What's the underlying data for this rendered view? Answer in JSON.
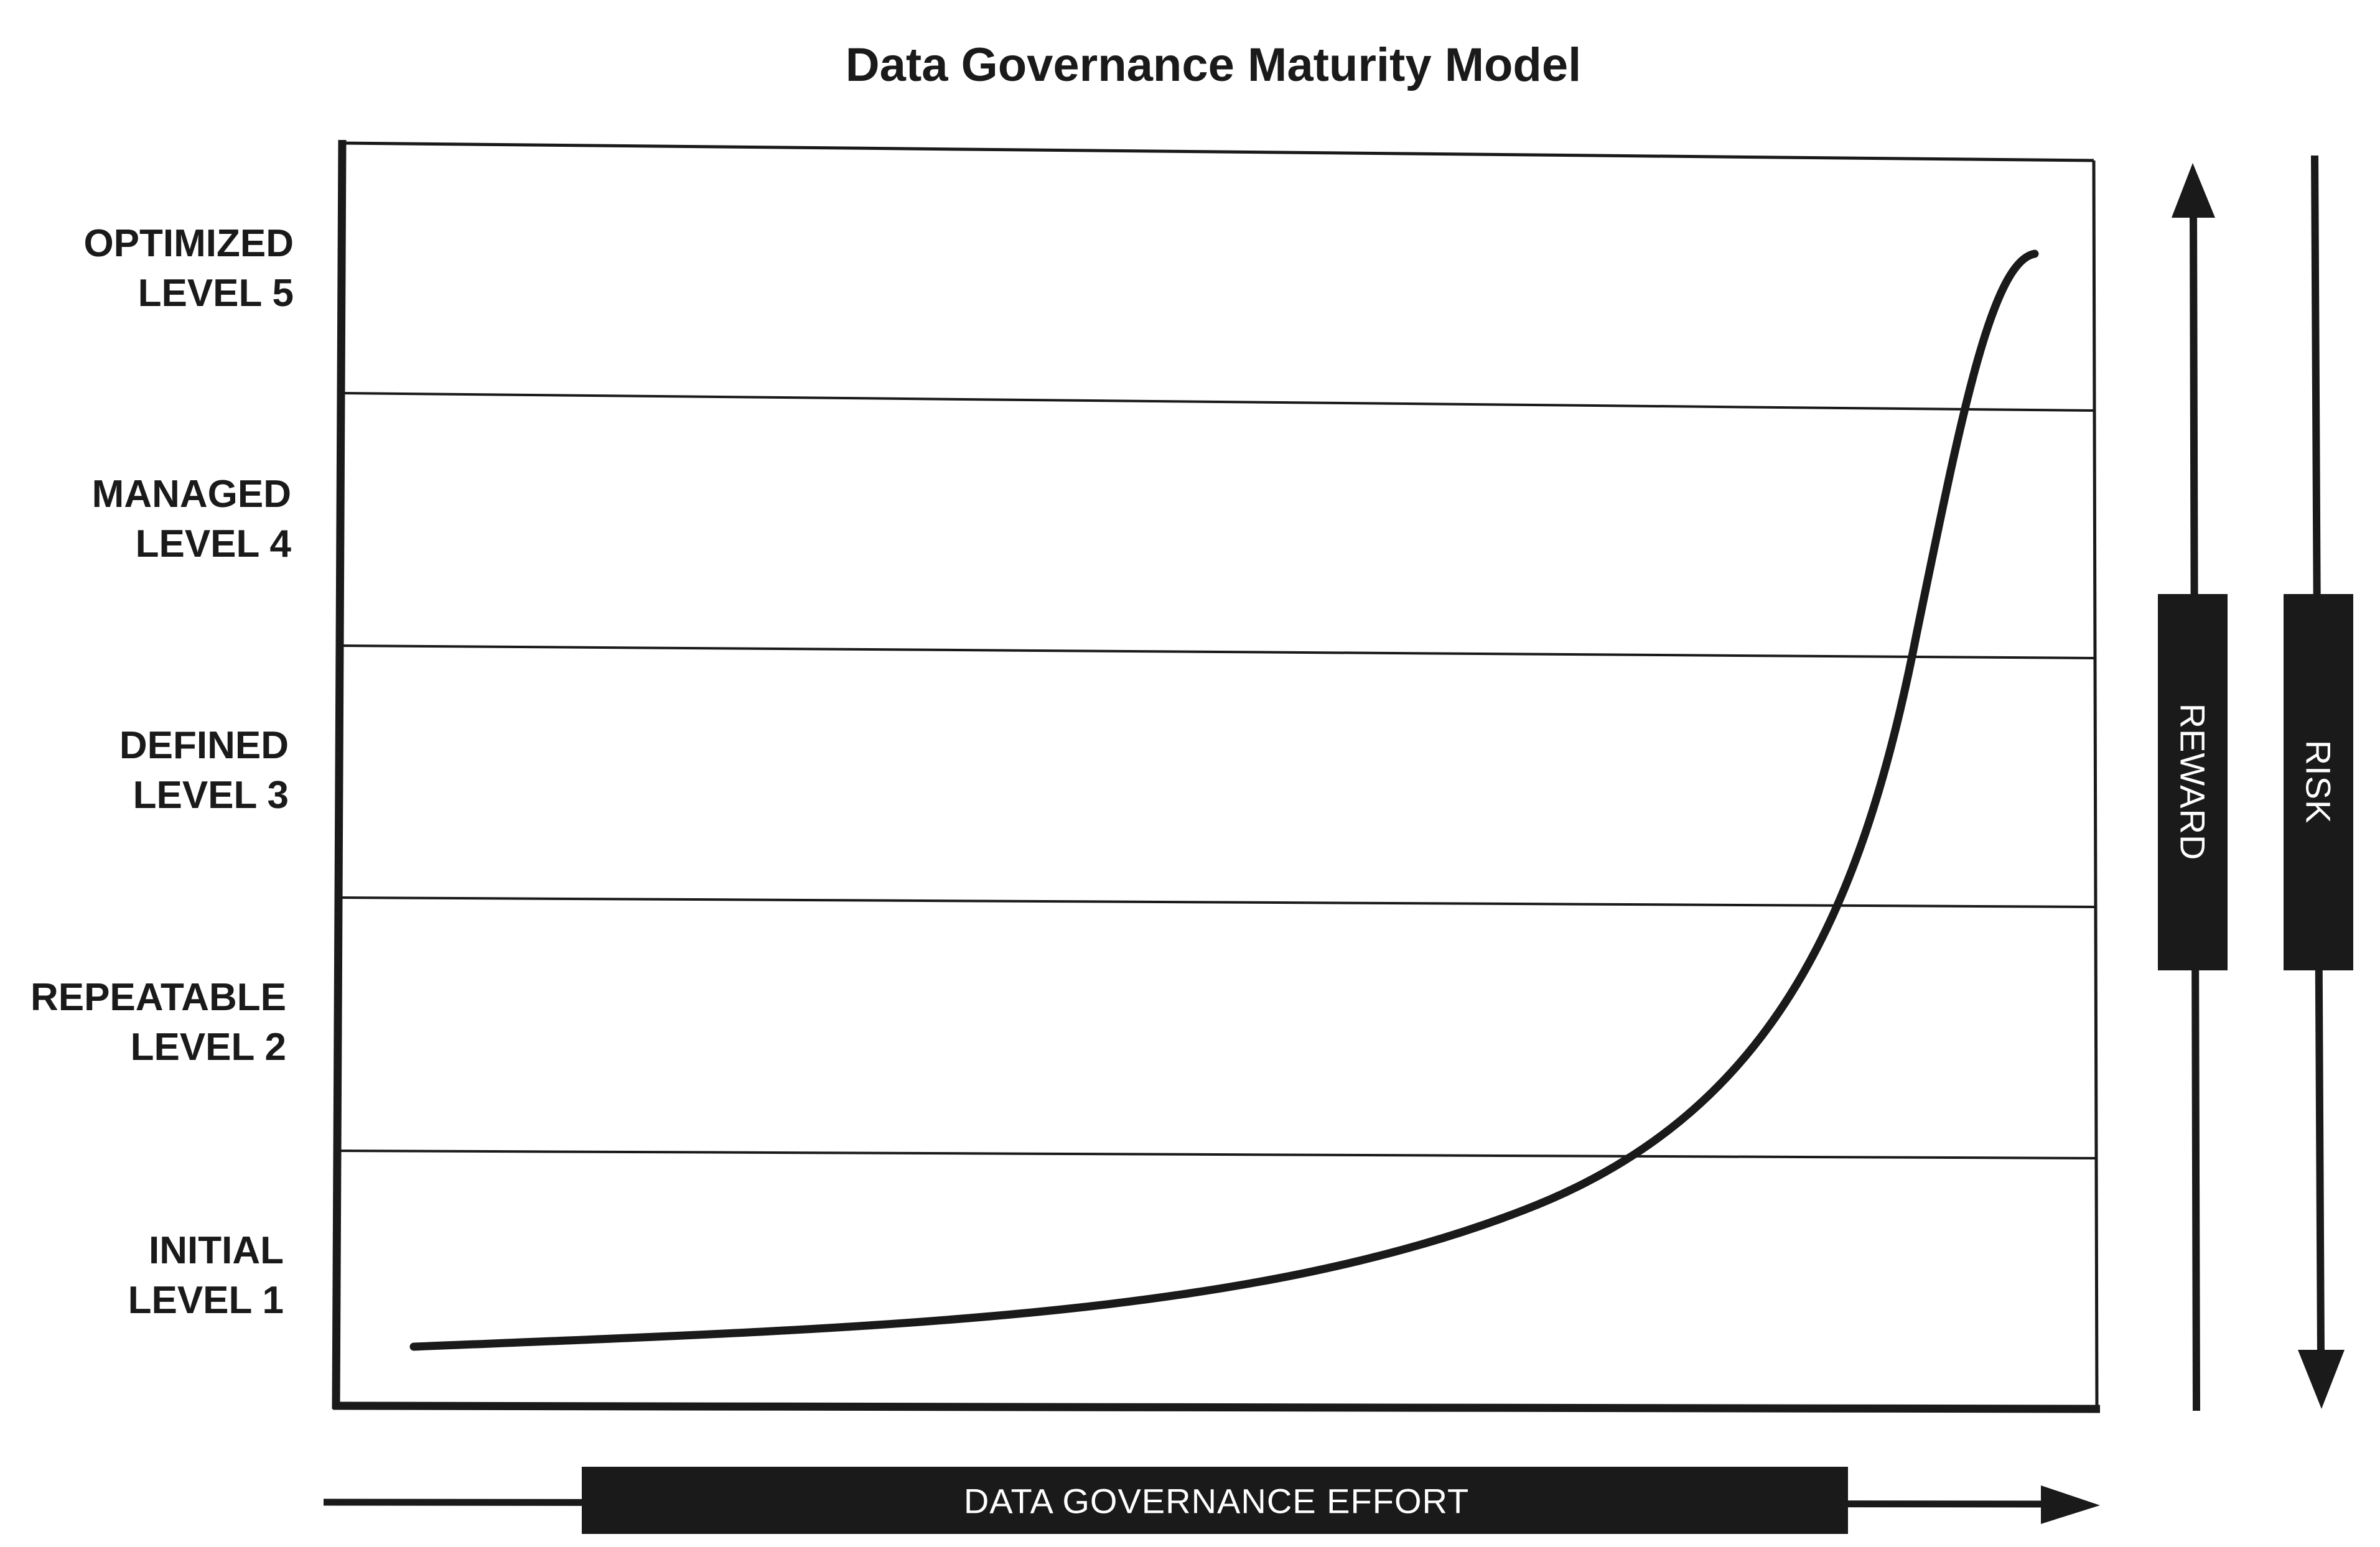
{
  "title": "Data Governance Maturity Model",
  "levels": [
    {
      "name": "OPTIMIZED",
      "level": "LEVEL 5"
    },
    {
      "name": "MANAGED",
      "level": "LEVEL 4"
    },
    {
      "name": "DEFINED",
      "level": "LEVEL 3"
    },
    {
      "name": "REPEATABLE",
      "level": "LEVEL 2"
    },
    {
      "name": "INITIAL",
      "level": "LEVEL 1"
    }
  ],
  "x_axis_label": "DATA GOVERNANCE EFFORT",
  "reward_label": "REWARD",
  "risk_label": "RISK",
  "colors": {
    "ink": "#1a1a1a",
    "background": "#ffffff",
    "label_fill": "#ffffff"
  }
}
